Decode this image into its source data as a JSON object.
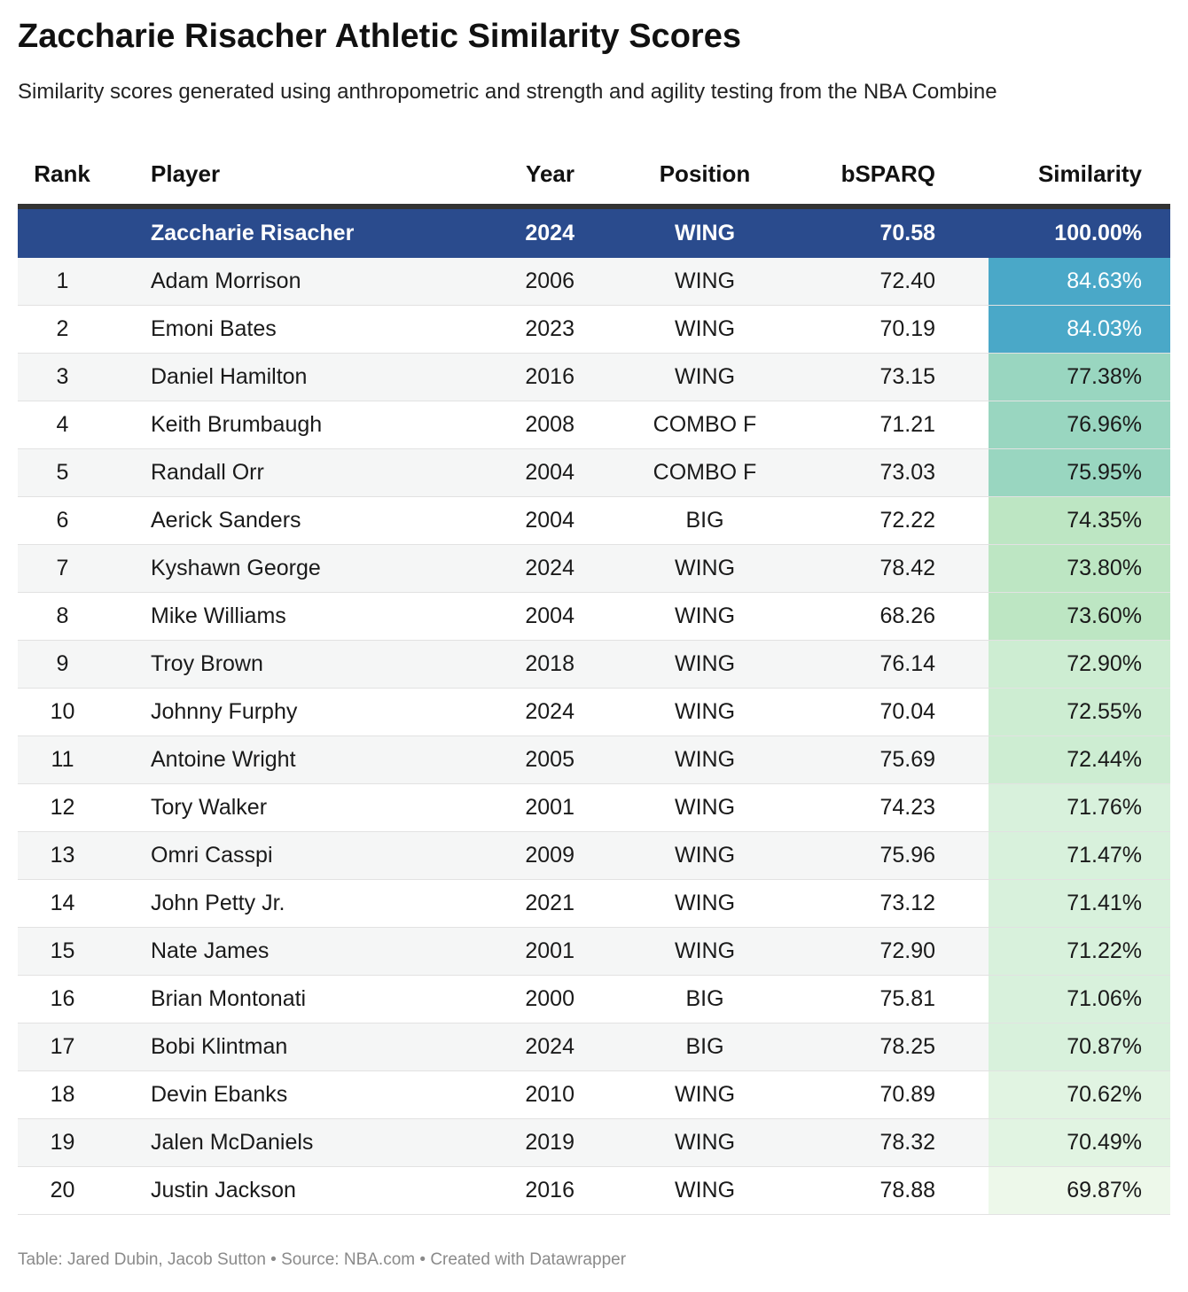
{
  "title": "Zaccharie Risacher Athletic Similarity Scores",
  "subtitle": "Similarity scores generated using anthropometric and strength and agility testing from the NBA Combine",
  "footer": "Table: Jared Dubin, Jacob Sutton • Source: NBA.com • Created with Datawrapper",
  "colors": {
    "highlight_row": "#2a4b8d",
    "scale": [
      {
        "min": 80,
        "color": "#4aa8c8",
        "text": "#ffffff"
      },
      {
        "min": 75.5,
        "color": "#99d6c0",
        "text": "#1a1a1a"
      },
      {
        "min": 73.5,
        "color": "#bde6c3",
        "text": "#1a1a1a"
      },
      {
        "min": 72.2,
        "color": "#cdedd2",
        "text": "#1a1a1a"
      },
      {
        "min": 70.8,
        "color": "#d8f1dc",
        "text": "#1a1a1a"
      },
      {
        "min": 70.3,
        "color": "#e1f4e2",
        "text": "#1a1a1a"
      },
      {
        "min": 0,
        "color": "#edf8ea",
        "text": "#1a1a1a"
      }
    ]
  },
  "chart_data": {
    "type": "table",
    "title": "Zaccharie Risacher Athletic Similarity Scores",
    "columns": [
      "Rank",
      "Player",
      "Year",
      "Position",
      "bSPARQ",
      "Similarity"
    ],
    "reference": {
      "rank": "",
      "player": "Zaccharie Risacher",
      "year": "2024",
      "position": "WING",
      "bsparq": "70.58",
      "similarity": "100.00%"
    },
    "rows": [
      {
        "rank": "1",
        "player": "Adam Morrison",
        "year": "2006",
        "position": "WING",
        "bsparq": "72.40",
        "similarity": "84.63%",
        "value": 84.63
      },
      {
        "rank": "2",
        "player": "Emoni Bates",
        "year": "2023",
        "position": "WING",
        "bsparq": "70.19",
        "similarity": "84.03%",
        "value": 84.03
      },
      {
        "rank": "3",
        "player": "Daniel Hamilton",
        "year": "2016",
        "position": "WING",
        "bsparq": "73.15",
        "similarity": "77.38%",
        "value": 77.38
      },
      {
        "rank": "4",
        "player": "Keith Brumbaugh",
        "year": "2008",
        "position": "COMBO F",
        "bsparq": "71.21",
        "similarity": "76.96%",
        "value": 76.96
      },
      {
        "rank": "5",
        "player": "Randall Orr",
        "year": "2004",
        "position": "COMBO F",
        "bsparq": "73.03",
        "similarity": "75.95%",
        "value": 75.95
      },
      {
        "rank": "6",
        "player": "Aerick Sanders",
        "year": "2004",
        "position": "BIG",
        "bsparq": "72.22",
        "similarity": "74.35%",
        "value": 74.35
      },
      {
        "rank": "7",
        "player": "Kyshawn George",
        "year": "2024",
        "position": "WING",
        "bsparq": "78.42",
        "similarity": "73.80%",
        "value": 73.8
      },
      {
        "rank": "8",
        "player": "Mike Williams",
        "year": "2004",
        "position": "WING",
        "bsparq": "68.26",
        "similarity": "73.60%",
        "value": 73.6
      },
      {
        "rank": "9",
        "player": "Troy Brown",
        "year": "2018",
        "position": "WING",
        "bsparq": "76.14",
        "similarity": "72.90%",
        "value": 72.9
      },
      {
        "rank": "10",
        "player": "Johnny Furphy",
        "year": "2024",
        "position": "WING",
        "bsparq": "70.04",
        "similarity": "72.55%",
        "value": 72.55
      },
      {
        "rank": "11",
        "player": "Antoine Wright",
        "year": "2005",
        "position": "WING",
        "bsparq": "75.69",
        "similarity": "72.44%",
        "value": 72.44
      },
      {
        "rank": "12",
        "player": "Tory Walker",
        "year": "2001",
        "position": "WING",
        "bsparq": "74.23",
        "similarity": "71.76%",
        "value": 71.76
      },
      {
        "rank": "13",
        "player": "Omri Casspi",
        "year": "2009",
        "position": "WING",
        "bsparq": "75.96",
        "similarity": "71.47%",
        "value": 71.47
      },
      {
        "rank": "14",
        "player": "John Petty Jr.",
        "year": "2021",
        "position": "WING",
        "bsparq": "73.12",
        "similarity": "71.41%",
        "value": 71.41
      },
      {
        "rank": "15",
        "player": "Nate James",
        "year": "2001",
        "position": "WING",
        "bsparq": "72.90",
        "similarity": "71.22%",
        "value": 71.22
      },
      {
        "rank": "16",
        "player": "Brian Montonati",
        "year": "2000",
        "position": "BIG",
        "bsparq": "75.81",
        "similarity": "71.06%",
        "value": 71.06
      },
      {
        "rank": "17",
        "player": "Bobi Klintman",
        "year": "2024",
        "position": "BIG",
        "bsparq": "78.25",
        "similarity": "70.87%",
        "value": 70.87
      },
      {
        "rank": "18",
        "player": "Devin Ebanks",
        "year": "2010",
        "position": "WING",
        "bsparq": "70.89",
        "similarity": "70.62%",
        "value": 70.62
      },
      {
        "rank": "19",
        "player": "Jalen McDaniels",
        "year": "2019",
        "position": "WING",
        "bsparq": "78.32",
        "similarity": "70.49%",
        "value": 70.49
      },
      {
        "rank": "20",
        "player": "Justin Jackson",
        "year": "2016",
        "position": "WING",
        "bsparq": "78.88",
        "similarity": "69.87%",
        "value": 69.87
      }
    ]
  }
}
